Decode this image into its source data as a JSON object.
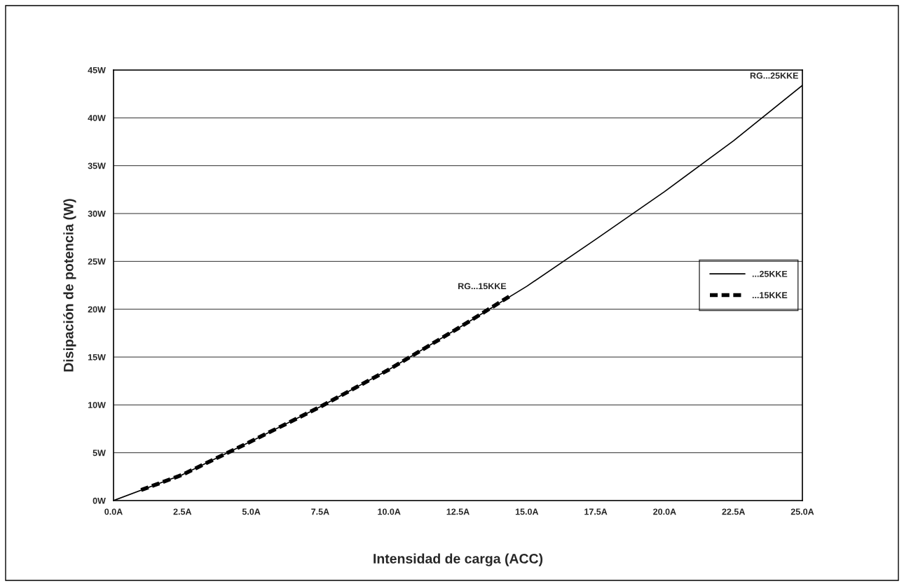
{
  "chart_data": {
    "type": "line",
    "xlabel": "Intensidad de carga (ACC)",
    "ylabel": "Disipación de potencia (W)",
    "xlim": [
      0,
      25
    ],
    "ylim": [
      0,
      45
    ],
    "xticks": [
      {
        "value": 0,
        "label": "0.0A"
      },
      {
        "value": 2.5,
        "label": "2.5A"
      },
      {
        "value": 5,
        "label": "5.0A"
      },
      {
        "value": 7.5,
        "label": "7.5A"
      },
      {
        "value": 10,
        "label": "10.0A"
      },
      {
        "value": 12.5,
        "label": "12.5A"
      },
      {
        "value": 15,
        "label": "15.0A"
      },
      {
        "value": 17.5,
        "label": "17.5A"
      },
      {
        "value": 20,
        "label": "20.0A"
      },
      {
        "value": 22.5,
        "label": "22.5A"
      },
      {
        "value": 25,
        "label": "25.0A"
      }
    ],
    "yticks": [
      {
        "value": 0,
        "label": "0W"
      },
      {
        "value": 5,
        "label": "5W"
      },
      {
        "value": 10,
        "label": "10W"
      },
      {
        "value": 15,
        "label": "15W"
      },
      {
        "value": 20,
        "label": "20W"
      },
      {
        "value": 25,
        "label": "25W"
      },
      {
        "value": 30,
        "label": "30W"
      },
      {
        "value": 35,
        "label": "35W"
      },
      {
        "value": 40,
        "label": "40W"
      },
      {
        "value": 45,
        "label": "45W"
      }
    ],
    "grid": "y",
    "legend": "right",
    "marker": "none",
    "series": [
      {
        "name": "...25KKE",
        "color": "#000000",
        "line_style": "solid",
        "x": [
          0,
          2.5,
          5,
          7.5,
          10,
          12.5,
          15,
          17.5,
          20,
          22.5,
          25
        ],
        "values": [
          0,
          2.7,
          6.2,
          9.8,
          13.7,
          18.0,
          22.4,
          27.3,
          32.3,
          37.6,
          43.4
        ]
      },
      {
        "name": "...15KKE",
        "color": "#000000",
        "line_style": "dashed",
        "x": [
          1,
          2.5,
          5,
          7.5,
          10,
          12.5,
          14.4
        ],
        "values": [
          1.1,
          2.7,
          6.2,
          9.8,
          13.7,
          18.0,
          21.4
        ]
      }
    ],
    "annotations": [
      {
        "text": "RG...25KKE",
        "x": 25,
        "y": 43.4
      },
      {
        "text": "RG...15KKE",
        "x": 14.4,
        "y": 21.4
      }
    ]
  }
}
